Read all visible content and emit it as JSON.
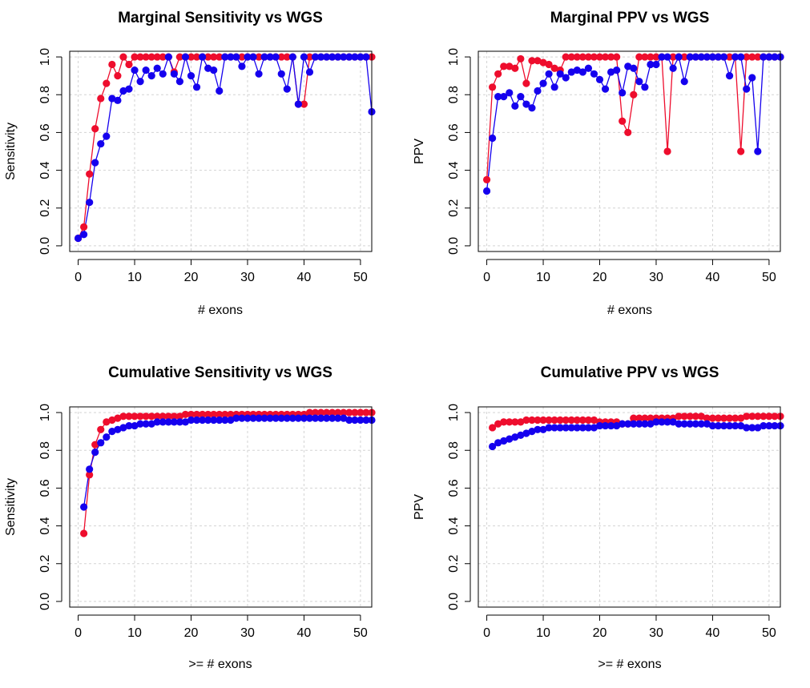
{
  "colors": {
    "red_series": "#ee0d2d",
    "blue_series": "#1500ee",
    "grid": "#d3d3d3"
  },
  "chart_data": [
    {
      "type": "line",
      "title": "Marginal Sensitivity vs WGS",
      "xlabel": "# exons",
      "ylabel": "Sensitivity",
      "xlim": [
        -1.5,
        52
      ],
      "ylim": [
        -0.03,
        1.03
      ],
      "xticks": [
        0,
        10,
        20,
        30,
        40,
        50
      ],
      "yticks": [
        0.0,
        0.2,
        0.4,
        0.6,
        0.8,
        1.0
      ],
      "xtick_labels": [
        "0",
        "10",
        "20",
        "30",
        "40",
        "50"
      ],
      "ytick_labels": [
        "0.0",
        "0.2",
        "0.4",
        "0.6",
        "0.8",
        "1.0"
      ],
      "grid": true,
      "series": [
        {
          "color": "red",
          "x": [
            0,
            1,
            2,
            3,
            4,
            5,
            6,
            7,
            8,
            9,
            10,
            11,
            12,
            13,
            14,
            15,
            16,
            17,
            18,
            19,
            20,
            21,
            22,
            23,
            24,
            25,
            26,
            27,
            28,
            29,
            30,
            31,
            32,
            33,
            34,
            35,
            36,
            37,
            38,
            39,
            40,
            41,
            42,
            43,
            44,
            45,
            46,
            47,
            48,
            49,
            50,
            51,
            52
          ],
          "y": [
            0.04,
            0.1,
            0.38,
            0.62,
            0.78,
            0.86,
            0.96,
            0.9,
            1.0,
            0.96,
            1.0,
            1.0,
            1.0,
            1.0,
            1.0,
            1.0,
            1.0,
            0.92,
            1.0,
            1.0,
            1.0,
            1.0,
            1.0,
            1.0,
            1.0,
            1.0,
            1.0,
            1.0,
            1.0,
            1.0,
            1.0,
            1.0,
            1.0,
            1.0,
            1.0,
            1.0,
            1.0,
            1.0,
            1.0,
            0.75,
            0.75,
            1.0,
            1.0,
            1.0,
            1.0,
            1.0,
            1.0,
            1.0,
            1.0,
            1.0,
            1.0,
            1.0,
            1.0
          ]
        },
        {
          "color": "blue",
          "x": [
            0,
            1,
            2,
            3,
            4,
            5,
            6,
            7,
            8,
            9,
            10,
            11,
            12,
            13,
            14,
            15,
            16,
            17,
            18,
            19,
            20,
            21,
            22,
            23,
            24,
            25,
            26,
            27,
            28,
            29,
            30,
            31,
            32,
            33,
            34,
            35,
            36,
            37,
            38,
            39,
            40,
            41,
            42,
            43,
            44,
            45,
            46,
            47,
            48,
            49,
            50,
            51,
            52
          ],
          "y": [
            0.04,
            0.06,
            0.23,
            0.44,
            0.54,
            0.58,
            0.78,
            0.77,
            0.82,
            0.83,
            0.93,
            0.87,
            0.93,
            0.9,
            0.94,
            0.91,
            1.0,
            0.91,
            0.87,
            1.0,
            0.9,
            0.84,
            1.0,
            0.94,
            0.93,
            0.82,
            1.0,
            1.0,
            1.0,
            0.95,
            1.0,
            1.0,
            0.91,
            1.0,
            1.0,
            1.0,
            0.91,
            0.83,
            1.0,
            0.75,
            1.0,
            0.92,
            1.0,
            1.0,
            1.0,
            1.0,
            1.0,
            1.0,
            1.0,
            1.0,
            1.0,
            1.0,
            0.71
          ]
        }
      ]
    },
    {
      "type": "line",
      "title": "Marginal PPV vs WGS",
      "xlabel": "# exons",
      "ylabel": "PPV",
      "xlim": [
        -1.5,
        52
      ],
      "ylim": [
        -0.03,
        1.03
      ],
      "xticks": [
        0,
        10,
        20,
        30,
        40,
        50
      ],
      "yticks": [
        0.0,
        0.2,
        0.4,
        0.6,
        0.8,
        1.0
      ],
      "xtick_labels": [
        "0",
        "10",
        "20",
        "30",
        "40",
        "50"
      ],
      "ytick_labels": [
        "0.0",
        "0.2",
        "0.4",
        "0.6",
        "0.8",
        "1.0"
      ],
      "grid": true,
      "series": [
        {
          "color": "red",
          "x": [
            0,
            1,
            2,
            3,
            4,
            5,
            6,
            7,
            8,
            9,
            10,
            11,
            12,
            13,
            14,
            15,
            16,
            17,
            18,
            19,
            20,
            21,
            22,
            23,
            24,
            25,
            26,
            27,
            28,
            29,
            30,
            31,
            32,
            33,
            34,
            35,
            36,
            37,
            38,
            39,
            40,
            41,
            42,
            43,
            44,
            45,
            46,
            47,
            48,
            49,
            50,
            51,
            52
          ],
          "y": [
            0.35,
            0.84,
            0.91,
            0.95,
            0.95,
            0.94,
            0.99,
            0.86,
            0.98,
            0.98,
            0.97,
            0.96,
            0.94,
            0.93,
            1.0,
            1.0,
            1.0,
            1.0,
            1.0,
            1.0,
            1.0,
            1.0,
            1.0,
            1.0,
            0.66,
            0.6,
            0.8,
            1.0,
            1.0,
            1.0,
            1.0,
            1.0,
            0.5,
            1.0,
            1.0,
            1.0,
            1.0,
            1.0,
            1.0,
            1.0,
            1.0,
            1.0,
            1.0,
            1.0,
            1.0,
            0.5,
            1.0,
            1.0,
            1.0,
            1.0,
            1.0,
            1.0,
            1.0
          ]
        },
        {
          "color": "blue",
          "x": [
            0,
            1,
            2,
            3,
            4,
            5,
            6,
            7,
            8,
            9,
            10,
            11,
            12,
            13,
            14,
            15,
            16,
            17,
            18,
            19,
            20,
            21,
            22,
            23,
            24,
            25,
            26,
            27,
            28,
            29,
            30,
            31,
            32,
            33,
            34,
            35,
            36,
            37,
            38,
            39,
            40,
            41,
            42,
            43,
            44,
            45,
            46,
            47,
            48,
            49,
            50,
            51,
            52
          ],
          "y": [
            0.29,
            0.57,
            0.79,
            0.79,
            0.81,
            0.74,
            0.79,
            0.75,
            0.73,
            0.82,
            0.86,
            0.91,
            0.84,
            0.91,
            0.89,
            0.92,
            0.93,
            0.92,
            0.94,
            0.91,
            0.88,
            0.83,
            0.92,
            0.93,
            0.81,
            0.95,
            0.94,
            0.87,
            0.84,
            0.96,
            0.96,
            1.0,
            1.0,
            0.94,
            1.0,
            0.87,
            1.0,
            1.0,
            1.0,
            1.0,
            1.0,
            1.0,
            1.0,
            0.9,
            1.0,
            1.0,
            0.83,
            0.89,
            0.5,
            1.0,
            1.0,
            1.0,
            1.0
          ]
        }
      ]
    },
    {
      "type": "line",
      "title": "Cumulative Sensitivity vs WGS",
      "xlabel": ">= # exons",
      "ylabel": "Sensitivity",
      "xlim": [
        -1.5,
        52
      ],
      "ylim": [
        -0.03,
        1.03
      ],
      "xticks": [
        0,
        10,
        20,
        30,
        40,
        50
      ],
      "yticks": [
        0.0,
        0.2,
        0.4,
        0.6,
        0.8,
        1.0
      ],
      "xtick_labels": [
        "0",
        "10",
        "20",
        "30",
        "40",
        "50"
      ],
      "ytick_labels": [
        "0.0",
        "0.2",
        "0.4",
        "0.6",
        "0.8",
        "1.0"
      ],
      "grid": true,
      "series": [
        {
          "color": "red",
          "x": [
            1,
            2,
            3,
            4,
            5,
            6,
            7,
            8,
            9,
            10,
            11,
            12,
            13,
            14,
            15,
            16,
            17,
            18,
            19,
            20,
            21,
            22,
            23,
            24,
            25,
            26,
            27,
            28,
            29,
            30,
            31,
            32,
            33,
            34,
            35,
            36,
            37,
            38,
            39,
            40,
            41,
            42,
            43,
            44,
            45,
            46,
            47,
            48,
            49,
            50,
            51,
            52
          ],
          "y": [
            0.36,
            0.67,
            0.83,
            0.91,
            0.95,
            0.96,
            0.97,
            0.98,
            0.98,
            0.98,
            0.98,
            0.98,
            0.98,
            0.98,
            0.98,
            0.98,
            0.98,
            0.98,
            0.99,
            0.99,
            0.99,
            0.99,
            0.99,
            0.99,
            0.99,
            0.99,
            0.99,
            0.99,
            0.99,
            0.99,
            0.99,
            0.99,
            0.99,
            0.99,
            0.99,
            0.99,
            0.99,
            0.99,
            0.99,
            0.99,
            1.0,
            1.0,
            1.0,
            1.0,
            1.0,
            1.0,
            1.0,
            1.0,
            1.0,
            1.0,
            1.0,
            1.0
          ]
        },
        {
          "color": "blue",
          "x": [
            1,
            2,
            3,
            4,
            5,
            6,
            7,
            8,
            9,
            10,
            11,
            12,
            13,
            14,
            15,
            16,
            17,
            18,
            19,
            20,
            21,
            22,
            23,
            24,
            25,
            26,
            27,
            28,
            29,
            30,
            31,
            32,
            33,
            34,
            35,
            36,
            37,
            38,
            39,
            40,
            41,
            42,
            43,
            44,
            45,
            46,
            47,
            48,
            49,
            50,
            51,
            52
          ],
          "y": [
            0.5,
            0.7,
            0.79,
            0.84,
            0.87,
            0.9,
            0.91,
            0.92,
            0.93,
            0.93,
            0.94,
            0.94,
            0.94,
            0.95,
            0.95,
            0.95,
            0.95,
            0.95,
            0.95,
            0.96,
            0.96,
            0.96,
            0.96,
            0.96,
            0.96,
            0.96,
            0.96,
            0.97,
            0.97,
            0.97,
            0.97,
            0.97,
            0.97,
            0.97,
            0.97,
            0.97,
            0.97,
            0.97,
            0.97,
            0.97,
            0.97,
            0.97,
            0.97,
            0.97,
            0.97,
            0.97,
            0.97,
            0.96,
            0.96,
            0.96,
            0.96,
            0.96
          ]
        }
      ]
    },
    {
      "type": "line",
      "title": "Cumulative PPV vs WGS",
      "xlabel": ">= # exons",
      "ylabel": "PPV",
      "xlim": [
        -1.5,
        52
      ],
      "ylim": [
        -0.03,
        1.03
      ],
      "xticks": [
        0,
        10,
        20,
        30,
        40,
        50
      ],
      "yticks": [
        0.0,
        0.2,
        0.4,
        0.6,
        0.8,
        1.0
      ],
      "xtick_labels": [
        "0",
        "10",
        "20",
        "30",
        "40",
        "50"
      ],
      "ytick_labels": [
        "0.0",
        "0.2",
        "0.4",
        "0.6",
        "0.8",
        "1.0"
      ],
      "grid": true,
      "series": [
        {
          "color": "red",
          "x": [
            1,
            2,
            3,
            4,
            5,
            6,
            7,
            8,
            9,
            10,
            11,
            12,
            13,
            14,
            15,
            16,
            17,
            18,
            19,
            20,
            21,
            22,
            23,
            24,
            25,
            26,
            27,
            28,
            29,
            30,
            31,
            32,
            33,
            34,
            35,
            36,
            37,
            38,
            39,
            40,
            41,
            42,
            43,
            44,
            45,
            46,
            47,
            48,
            49,
            50,
            51,
            52
          ],
          "y": [
            0.92,
            0.94,
            0.95,
            0.95,
            0.95,
            0.95,
            0.96,
            0.96,
            0.96,
            0.96,
            0.96,
            0.96,
            0.96,
            0.96,
            0.96,
            0.96,
            0.96,
            0.96,
            0.96,
            0.95,
            0.95,
            0.95,
            0.95,
            0.94,
            0.94,
            0.97,
            0.97,
            0.97,
            0.97,
            0.97,
            0.97,
            0.97,
            0.97,
            0.98,
            0.98,
            0.98,
            0.98,
            0.98,
            0.97,
            0.97,
            0.97,
            0.97,
            0.97,
            0.97,
            0.97,
            0.98,
            0.98,
            0.98,
            0.98,
            0.98,
            0.98,
            0.98
          ]
        },
        {
          "color": "blue",
          "x": [
            1,
            2,
            3,
            4,
            5,
            6,
            7,
            8,
            9,
            10,
            11,
            12,
            13,
            14,
            15,
            16,
            17,
            18,
            19,
            20,
            21,
            22,
            23,
            24,
            25,
            26,
            27,
            28,
            29,
            30,
            31,
            32,
            33,
            34,
            35,
            36,
            37,
            38,
            39,
            40,
            41,
            42,
            43,
            44,
            45,
            46,
            47,
            48,
            49,
            50,
            51,
            52
          ],
          "y": [
            0.82,
            0.84,
            0.85,
            0.86,
            0.87,
            0.88,
            0.89,
            0.9,
            0.91,
            0.91,
            0.92,
            0.92,
            0.92,
            0.92,
            0.92,
            0.92,
            0.92,
            0.92,
            0.92,
            0.93,
            0.93,
            0.93,
            0.93,
            0.94,
            0.94,
            0.94,
            0.94,
            0.94,
            0.94,
            0.95,
            0.95,
            0.95,
            0.95,
            0.94,
            0.94,
            0.94,
            0.94,
            0.94,
            0.94,
            0.93,
            0.93,
            0.93,
            0.93,
            0.93,
            0.93,
            0.92,
            0.92,
            0.92,
            0.93,
            0.93,
            0.93,
            0.93
          ]
        }
      ]
    }
  ]
}
